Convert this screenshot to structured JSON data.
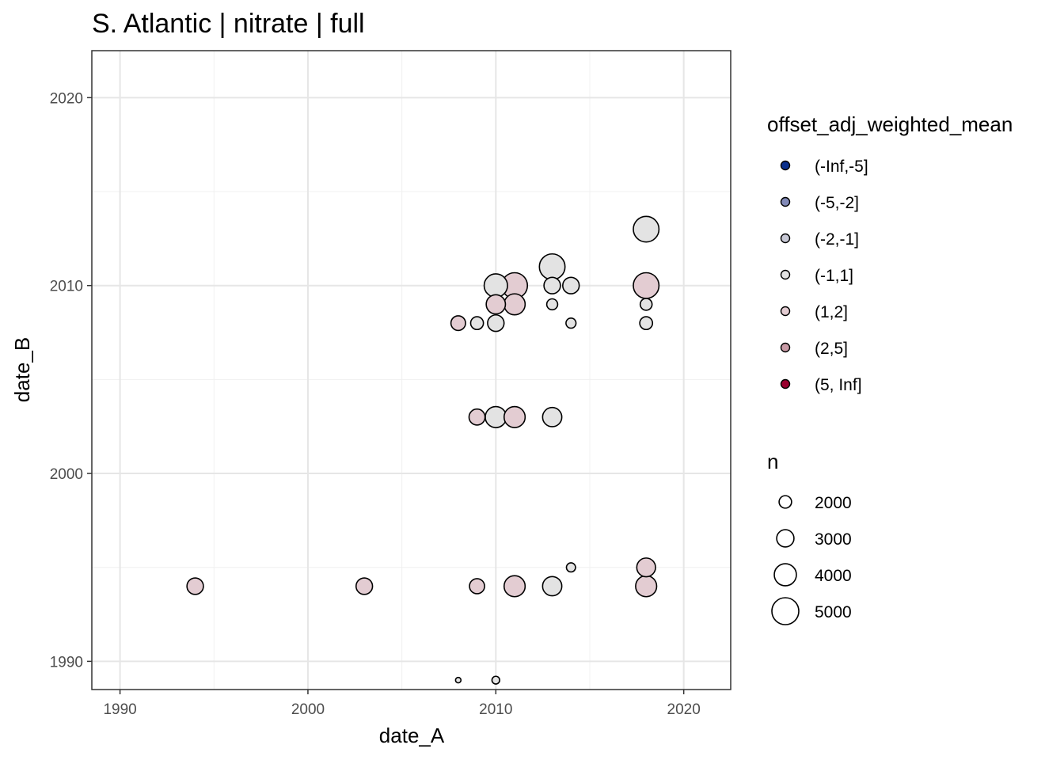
{
  "chart_data": {
    "type": "scatter",
    "title": "S. Atlantic | nitrate | full",
    "xlabel": "date_A",
    "ylabel": "date_B",
    "xlim": [
      1988.5,
      2022.5
    ],
    "ylim": [
      1988.5,
      2022.5
    ],
    "x_ticks": [
      1990,
      2000,
      2010,
      2020
    ],
    "y_ticks": [
      1990,
      2000,
      2010,
      2020
    ],
    "x_tick_labels": [
      "1990",
      "2000",
      "2010",
      "2020"
    ],
    "y_tick_labels": [
      "1990",
      "2000",
      "2010",
      "2020"
    ],
    "grid": true,
    "legend_position": "right",
    "color_legend": {
      "title": "offset_adj_weighted_mean",
      "bins": [
        {
          "label": "(-Inf,-5]",
          "color": "#0a2f8c"
        },
        {
          "label": "(-5,-2]",
          "color": "#8189b7"
        },
        {
          "label": "(-2,-1]",
          "color": "#c8c9d6"
        },
        {
          "label": "(-1,1]",
          "color": "#e3e3e3"
        },
        {
          "label": "(1,2]",
          "color": "#e3ccd2"
        },
        {
          "label": "(2,5]",
          "color": "#c89aa5"
        },
        {
          "label": "(5, Inf]",
          "color": "#99002e"
        }
      ]
    },
    "size_legend": {
      "title": "n",
      "entries": [
        {
          "label": "2000",
          "value": 2000
        },
        {
          "label": "3000",
          "value": 3000
        },
        {
          "label": "4000",
          "value": 4000
        },
        {
          "label": "5000",
          "value": 5000
        }
      ]
    },
    "points": [
      {
        "x": 1994,
        "y": 1994,
        "n": 3000,
        "bin": "(1,2]"
      },
      {
        "x": 2003,
        "y": 1994,
        "n": 3000,
        "bin": "(1,2]"
      },
      {
        "x": 2009,
        "y": 1994,
        "n": 2700,
        "bin": "(1,2]"
      },
      {
        "x": 2011,
        "y": 1994,
        "n": 4000,
        "bin": "(1,2]"
      },
      {
        "x": 2013,
        "y": 1994,
        "n": 3600,
        "bin": "(-1,1]"
      },
      {
        "x": 2014,
        "y": 1995,
        "n": 1400,
        "bin": "(-1,1]"
      },
      {
        "x": 2018,
        "y": 1994,
        "n": 4000,
        "bin": "(1,2]"
      },
      {
        "x": 2018,
        "y": 1995,
        "n": 3500,
        "bin": "(1,2]"
      },
      {
        "x": 2008,
        "y": 1989,
        "n": 600,
        "bin": "(-1,1]"
      },
      {
        "x": 2010,
        "y": 1989,
        "n": 1100,
        "bin": "(-1,1]"
      },
      {
        "x": 2009,
        "y": 2003,
        "n": 2900,
        "bin": "(1,2]"
      },
      {
        "x": 2010,
        "y": 2003,
        "n": 4000,
        "bin": "(-1,1]"
      },
      {
        "x": 2011,
        "y": 2003,
        "n": 4000,
        "bin": "(1,2]"
      },
      {
        "x": 2013,
        "y": 2003,
        "n": 3600,
        "bin": "(-1,1]"
      },
      {
        "x": 2008,
        "y": 2008,
        "n": 2600,
        "bin": "(1,2]"
      },
      {
        "x": 2009,
        "y": 2008,
        "n": 2200,
        "bin": "(-1,1]"
      },
      {
        "x": 2010,
        "y": 2008,
        "n": 3000,
        "bin": "(-1,1]"
      },
      {
        "x": 2014,
        "y": 2008,
        "n": 1600,
        "bin": "(-1,1]"
      },
      {
        "x": 2018,
        "y": 2008,
        "n": 2200,
        "bin": "(-1,1]"
      },
      {
        "x": 2010,
        "y": 2009,
        "n": 3600,
        "bin": "(1,2]"
      },
      {
        "x": 2011,
        "y": 2009,
        "n": 4000,
        "bin": "(1,2]"
      },
      {
        "x": 2013,
        "y": 2009,
        "n": 1800,
        "bin": "(-1,1]"
      },
      {
        "x": 2018,
        "y": 2009,
        "n": 2000,
        "bin": "(-1,1]"
      },
      {
        "x": 2010,
        "y": 2010,
        "n": 4500,
        "bin": "(-1,1]"
      },
      {
        "x": 2011,
        "y": 2010,
        "n": 5000,
        "bin": "(1,2]"
      },
      {
        "x": 2013,
        "y": 2010,
        "n": 3000,
        "bin": "(-1,1]"
      },
      {
        "x": 2014,
        "y": 2010,
        "n": 3000,
        "bin": "(-1,1]"
      },
      {
        "x": 2018,
        "y": 2010,
        "n": 5000,
        "bin": "(1,2]"
      },
      {
        "x": 2013,
        "y": 2011,
        "n": 5000,
        "bin": "(-1,1]"
      },
      {
        "x": 2018,
        "y": 2013,
        "n": 5000,
        "bin": "(-1,1]"
      }
    ]
  }
}
